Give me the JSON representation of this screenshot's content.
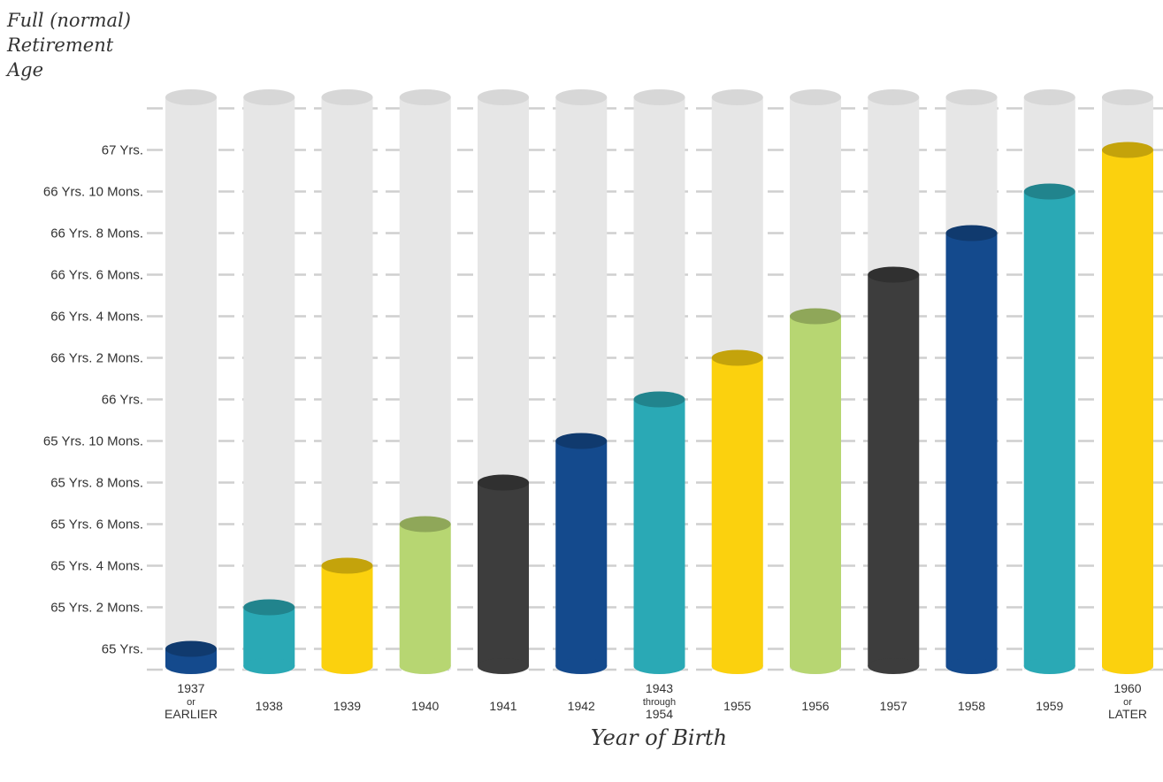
{
  "chart_data": {
    "type": "bar",
    "title": "",
    "ylabel": "Full (normal) Retirement Age",
    "xlabel": "Year of Birth",
    "y_unit": "months above age 65",
    "ylim": [
      -1,
      27
    ],
    "grid": true,
    "y_ticks": [
      {
        "value": 0,
        "label": "65 Yrs."
      },
      {
        "value": 2,
        "label": "65 Yrs. 2 Mons."
      },
      {
        "value": 4,
        "label": "65 Yrs. 4 Mons."
      },
      {
        "value": 6,
        "label": "65 Yrs. 6 Mons."
      },
      {
        "value": 8,
        "label": "65 Yrs. 8 Mons."
      },
      {
        "value": 10,
        "label": "65 Yrs. 10 Mons."
      },
      {
        "value": 12,
        "label": "66 Yrs."
      },
      {
        "value": 14,
        "label": "66 Yrs. 2 Mons."
      },
      {
        "value": 16,
        "label": "66 Yrs. 4 Mons."
      },
      {
        "value": 18,
        "label": "66 Yrs. 6 Mons."
      },
      {
        "value": 20,
        "label": "66 Yrs. 8 Mons."
      },
      {
        "value": 22,
        "label": "66 Yrs. 10 Mons."
      },
      {
        "value": 24,
        "label": "67 Yrs."
      }
    ],
    "categories": [
      {
        "lines": [
          "1937",
          "or",
          "EARLIER"
        ],
        "value": 0,
        "color": "#144a8d"
      },
      {
        "lines": [
          "1938"
        ],
        "value": 2,
        "color": "#2aa9b5"
      },
      {
        "lines": [
          "1939"
        ],
        "value": 4,
        "color": "#fbd10e"
      },
      {
        "lines": [
          "1940"
        ],
        "value": 6,
        "color": "#b7d672"
      },
      {
        "lines": [
          "1941"
        ],
        "value": 8,
        "color": "#3d3d3d"
      },
      {
        "lines": [
          "1942"
        ],
        "value": 10,
        "color": "#144a8d"
      },
      {
        "lines": [
          "1943",
          "through",
          "1954"
        ],
        "value": 12,
        "color": "#2aa9b5"
      },
      {
        "lines": [
          "1955"
        ],
        "value": 14,
        "color": "#fbd10e"
      },
      {
        "lines": [
          "1956"
        ],
        "value": 16,
        "color": "#b7d672"
      },
      {
        "lines": [
          "1957"
        ],
        "value": 18,
        "color": "#3d3d3d"
      },
      {
        "lines": [
          "1958"
        ],
        "value": 20,
        "color": "#144a8d"
      },
      {
        "lines": [
          "1959"
        ],
        "value": 22,
        "color": "#2aa9b5"
      },
      {
        "lines": [
          "1960",
          "or",
          "LATER"
        ],
        "value": 24,
        "color": "#fbd10e"
      }
    ],
    "colors": {
      "track": "#e6e6e6",
      "track_cap": "#d7d7d7",
      "grid": "#cfcfcf"
    }
  }
}
